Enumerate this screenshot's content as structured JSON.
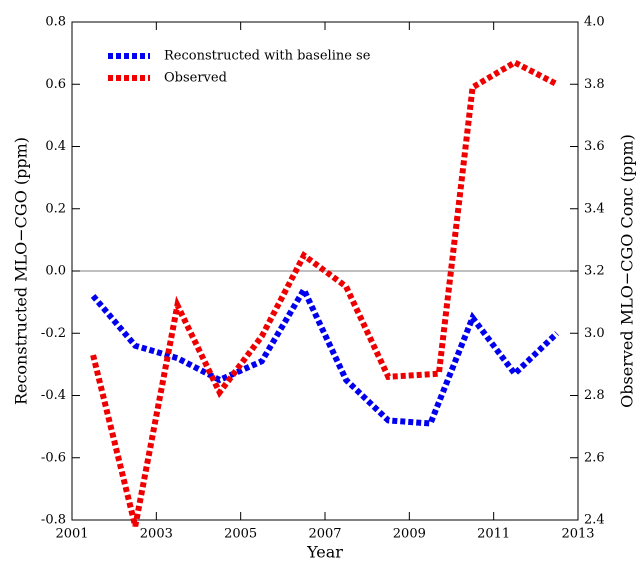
{
  "chart_data": {
    "type": "line",
    "xlabel": "Year",
    "ylabel": "Reconstructed MLO−CGO (ppm)",
    "y2label": "Observed MLO−CGO Conc (ppm)",
    "xlim": [
      2001,
      2013
    ],
    "xticks": [
      2001,
      2003,
      2005,
      2007,
      2009,
      2011,
      2013
    ],
    "ylim": [
      -0.8,
      0.8
    ],
    "yticks": [
      -0.8,
      -0.6,
      -0.4,
      -0.2,
      {
        "value": 0,
        "label": "0.0"
      },
      0.2,
      0.4,
      0.6,
      0.8
    ],
    "y2lim": [
      2.4,
      4.0
    ],
    "y2ticks": [
      2.4,
      2.6,
      2.8,
      {
        "value": 3,
        "label": "3.0"
      },
      3.2,
      3.4,
      3.6,
      3.8,
      {
        "value": 4,
        "label": "4.0"
      }
    ],
    "legend": "upper left",
    "series": [
      {
        "name": "Reconstructed with baseline se",
        "color": "#0000ee",
        "x": [
          2001.5,
          2002.5,
          2003.5,
          2004.5,
          2005.5,
          2006.5,
          2007.5,
          2008.5,
          2009.5,
          2010.5,
          2011.5,
          2012.5
        ],
        "values": [
          -0.08,
          -0.24,
          -0.28,
          -0.35,
          -0.29,
          -0.06,
          -0.35,
          -0.48,
          -0.49,
          -0.15,
          -0.33,
          -0.2
        ]
      },
      {
        "name": "Observed",
        "color": "#ee0000",
        "axis": "y2",
        "x": [
          2001.5,
          2002.5,
          2003.5,
          2004.5,
          2005.5,
          2006.5,
          2007.5,
          2008.5,
          2009.7,
          2010.5,
          2011.5,
          2012.5
        ],
        "values": [
          2.93,
          2.38,
          3.09,
          2.81,
          2.99,
          3.25,
          3.15,
          2.86,
          2.87,
          3.79,
          3.87,
          3.8
        ]
      }
    ]
  }
}
